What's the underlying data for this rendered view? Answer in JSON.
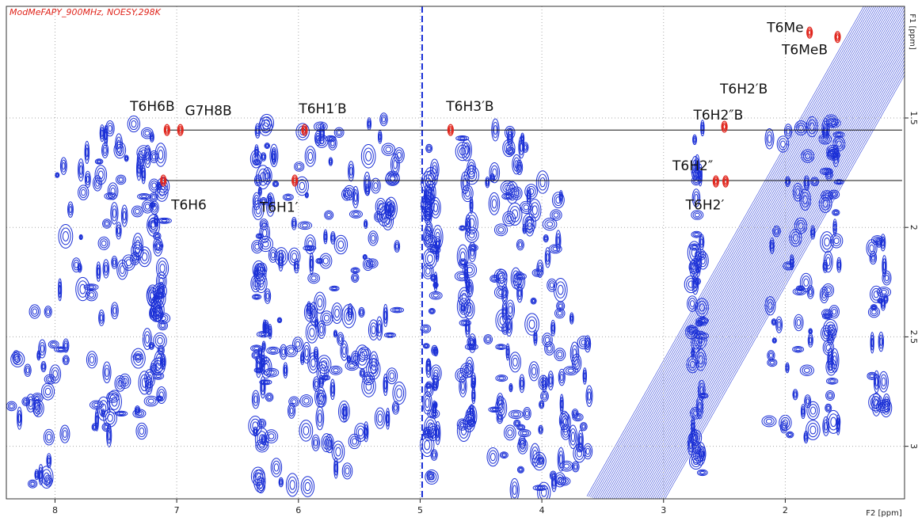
{
  "chart_data": {
    "type": "nmr2d",
    "title": "ModMeFAPY_900MHz, NOESY,298K",
    "x_label": "F2 [ppm]",
    "y_label": "F1 [ppm]",
    "xlim": [
      8.4,
      1.02
    ],
    "ylim": [
      0.99,
      3.24
    ],
    "xticks": [
      8,
      7,
      6,
      5,
      4,
      3,
      2
    ],
    "yticks": [
      1.5,
      2.0,
      2.5,
      3.0
    ],
    "grid": true,
    "contour_color": "#1a2fd6",
    "peak_color": "#e0241b",
    "peaks": [
      {
        "x": 7.08,
        "y": 1.555
      },
      {
        "x": 6.97,
        "y": 1.555
      },
      {
        "x": 5.95,
        "y": 1.555
      },
      {
        "x": 4.75,
        "y": 1.555
      },
      {
        "x": 2.5,
        "y": 1.54
      },
      {
        "x": 7.11,
        "y": 1.786
      },
      {
        "x": 6.03,
        "y": 1.786
      },
      {
        "x": 2.57,
        "y": 1.79
      },
      {
        "x": 2.49,
        "y": 1.79
      },
      {
        "x": 1.8,
        "y": 1.11
      },
      {
        "x": 1.57,
        "y": 1.13
      }
    ],
    "annotations": [
      {
        "text": "T6H6B",
        "x": 7.2,
        "y": 1.45
      },
      {
        "text": "G7H8B",
        "x": 6.74,
        "y": 1.47
      },
      {
        "text": "T6H1′B",
        "x": 5.8,
        "y": 1.46
      },
      {
        "text": "T6H3′B",
        "x": 4.59,
        "y": 1.45
      },
      {
        "text": "T6H2′B",
        "x": 2.34,
        "y": 1.37
      },
      {
        "text": "T6H2″B",
        "x": 2.55,
        "y": 1.49
      },
      {
        "text": "T6H2″",
        "x": 2.76,
        "y": 1.72
      },
      {
        "text": "T6H2′",
        "x": 2.66,
        "y": 1.9
      },
      {
        "text": "T6H6",
        "x": 6.9,
        "y": 1.9
      },
      {
        "text": "T6H1′",
        "x": 6.16,
        "y": 1.91
      },
      {
        "text": "T6Me",
        "x": 2.0,
        "y": 1.09
      },
      {
        "text": "T6MeB",
        "x": 1.84,
        "y": 1.19
      }
    ],
    "connectors": [
      {
        "y": 1.555,
        "x": [
          7.08,
          1.04
        ]
      },
      {
        "y": 1.786,
        "x": [
          7.11,
          1.04
        ]
      }
    ]
  }
}
